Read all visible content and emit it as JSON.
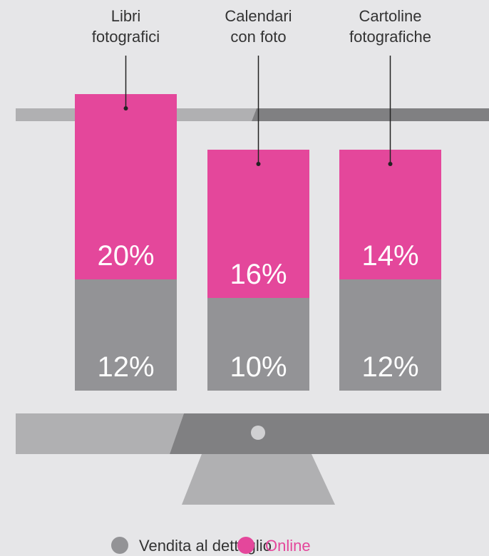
{
  "chart_data": {
    "type": "stacked-bar",
    "categories": [
      "Libri\nfotografici",
      "Calendari\ncon foto",
      "Cartoline\nfotografiche"
    ],
    "series": [
      {
        "name": "Vendita al dettaglio",
        "color": "#939396",
        "values": [
          12,
          10,
          12
        ],
        "value_labels": [
          "12%",
          "10%",
          "12%"
        ]
      },
      {
        "name": "Online",
        "color": "#e4479b",
        "values": [
          20,
          16,
          14
        ],
        "value_labels": [
          "20%",
          "16%",
          "14%"
        ]
      }
    ]
  }
}
